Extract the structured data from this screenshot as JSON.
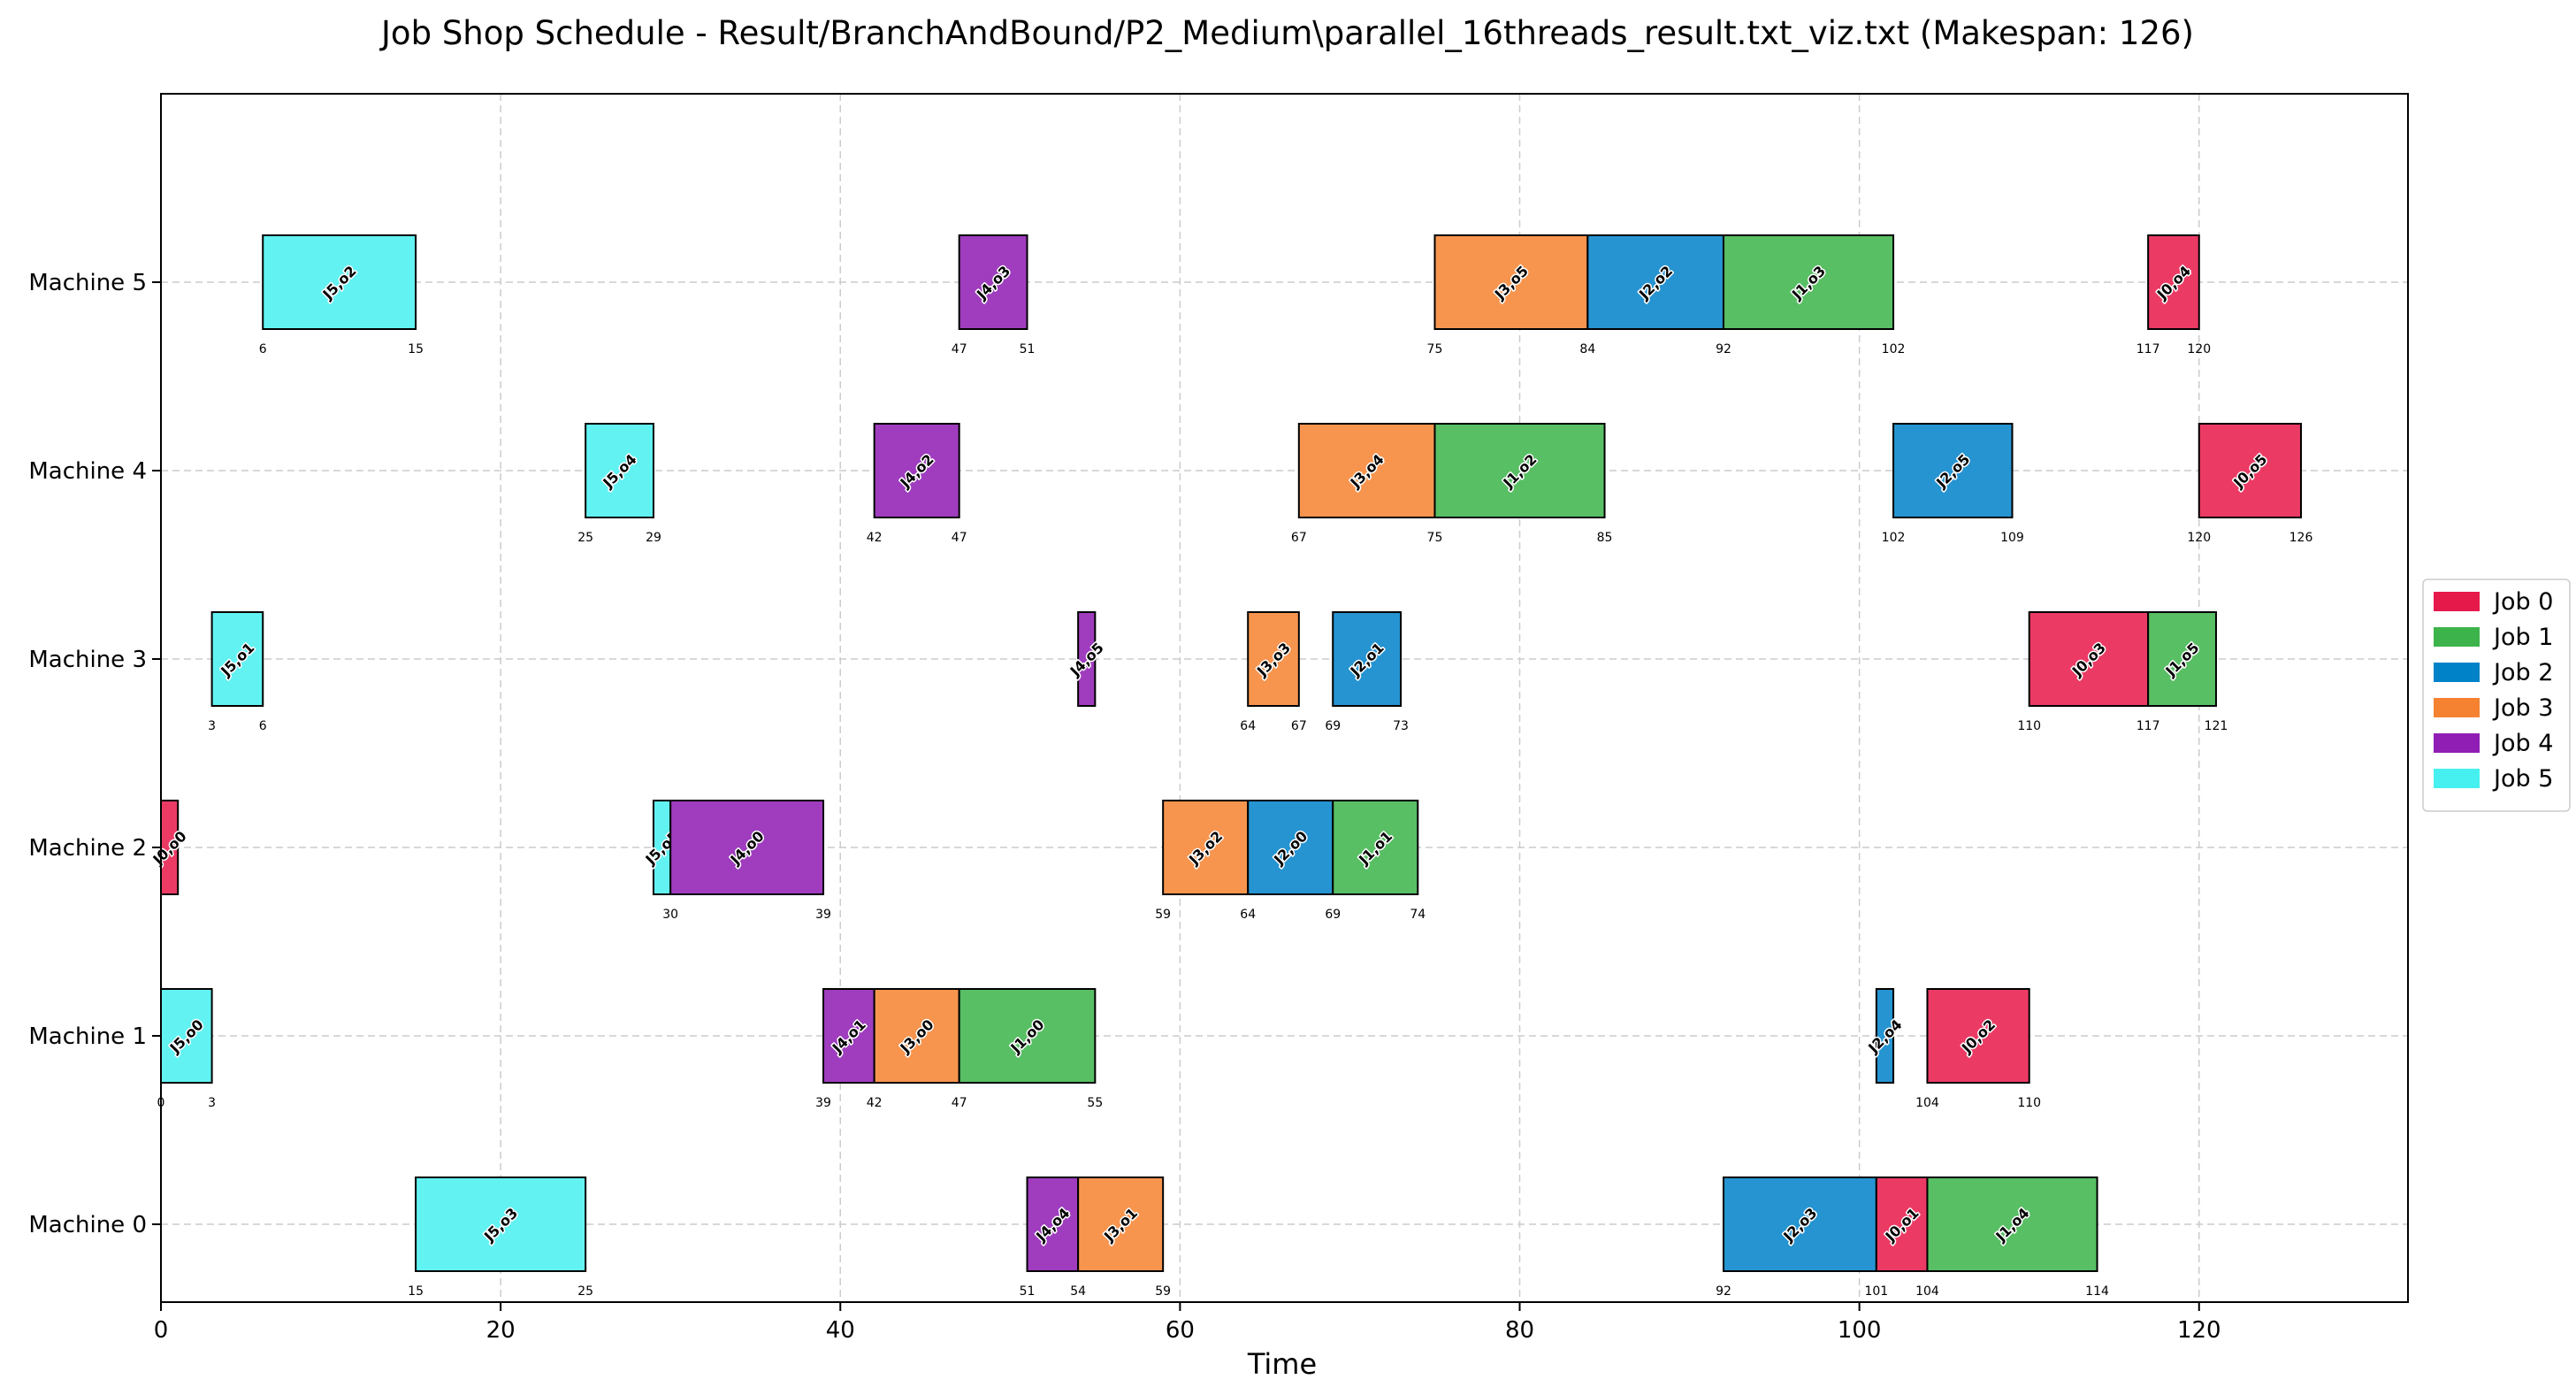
{
  "chart_data": {
    "type": "gantt",
    "title": "Job Shop Schedule - Result/BranchAndBound/P2_Medium\\parallel_16threads_result.txt_viz.txt (Makespan: 126)",
    "xlabel": "Time",
    "ylabel": "",
    "xlim": [
      0,
      132.3
    ],
    "xticks": [
      0,
      20,
      40,
      60,
      80,
      100,
      120
    ],
    "machines": [
      "Machine 0",
      "Machine 1",
      "Machine 2",
      "Machine 3",
      "Machine 4",
      "Machine 5"
    ],
    "grid": true,
    "legend_position": "right",
    "jobs": [
      {
        "name": "Job 0",
        "color": "#e6194b",
        "fill": "#eb3b65"
      },
      {
        "name": "Job 1",
        "color": "#3cb44b",
        "fill": "#58bf64"
      },
      {
        "name": "Job 2",
        "color": "#0082c8",
        "fill": "#2694d1"
      },
      {
        "name": "Job 3",
        "color": "#f58231",
        "fill": "#f7954f"
      },
      {
        "name": "Job 4",
        "color": "#911eb4",
        "fill": "#9f3dbe"
      },
      {
        "name": "Job 5",
        "color": "#46f0f0",
        "fill": "#63f2f2"
      }
    ],
    "operations": [
      {
        "machine": 0,
        "job": 5,
        "label": "J5,o3",
        "start": 15,
        "end": 25
      },
      {
        "machine": 0,
        "job": 4,
        "label": "J4,o4",
        "start": 51,
        "end": 54
      },
      {
        "machine": 0,
        "job": 3,
        "label": "J3,o1",
        "start": 54,
        "end": 59
      },
      {
        "machine": 0,
        "job": 2,
        "label": "J2,o3",
        "start": 92,
        "end": 101
      },
      {
        "machine": 0,
        "job": 0,
        "label": "J0,o1",
        "start": 101,
        "end": 104
      },
      {
        "machine": 0,
        "job": 1,
        "label": "J1,o4",
        "start": 104,
        "end": 114
      },
      {
        "machine": 1,
        "job": 5,
        "label": "J5,o0",
        "start": 0,
        "end": 3
      },
      {
        "machine": 1,
        "job": 4,
        "label": "J4,o1",
        "start": 39,
        "end": 42
      },
      {
        "machine": 1,
        "job": 3,
        "label": "J3,o0",
        "start": 42,
        "end": 47
      },
      {
        "machine": 1,
        "job": 1,
        "label": "J1,o0",
        "start": 47,
        "end": 55
      },
      {
        "machine": 1,
        "job": 2,
        "label": "J2,o4",
        "start": 101,
        "end": 102
      },
      {
        "machine": 1,
        "job": 0,
        "label": "J0,o2",
        "start": 104,
        "end": 110
      },
      {
        "machine": 2,
        "job": 0,
        "label": "J0,o0",
        "start": 0,
        "end": 1
      },
      {
        "machine": 2,
        "job": 5,
        "label": "J5,o5",
        "start": 29,
        "end": 30
      },
      {
        "machine": 2,
        "job": 4,
        "label": "J4,o0",
        "start": 30,
        "end": 39
      },
      {
        "machine": 2,
        "job": 3,
        "label": "J3,o2",
        "start": 59,
        "end": 64
      },
      {
        "machine": 2,
        "job": 2,
        "label": "J2,o0",
        "start": 64,
        "end": 69
      },
      {
        "machine": 2,
        "job": 1,
        "label": "J1,o1",
        "start": 69,
        "end": 74
      },
      {
        "machine": 3,
        "job": 5,
        "label": "J5,o1",
        "start": 3,
        "end": 6
      },
      {
        "machine": 3,
        "job": 4,
        "label": "J4,o5",
        "start": 54,
        "end": 55
      },
      {
        "machine": 3,
        "job": 3,
        "label": "J3,o3",
        "start": 64,
        "end": 67
      },
      {
        "machine": 3,
        "job": 2,
        "label": "J2,o1",
        "start": 69,
        "end": 73
      },
      {
        "machine": 3,
        "job": 0,
        "label": "J0,o3",
        "start": 110,
        "end": 117
      },
      {
        "machine": 3,
        "job": 1,
        "label": "J1,o5",
        "start": 117,
        "end": 121
      },
      {
        "machine": 4,
        "job": 5,
        "label": "J5,o4",
        "start": 25,
        "end": 29
      },
      {
        "machine": 4,
        "job": 4,
        "label": "J4,o2",
        "start": 42,
        "end": 47
      },
      {
        "machine": 4,
        "job": 3,
        "label": "J3,o4",
        "start": 67,
        "end": 75
      },
      {
        "machine": 4,
        "job": 1,
        "label": "J1,o2",
        "start": 75,
        "end": 85
      },
      {
        "machine": 4,
        "job": 2,
        "label": "J2,o5",
        "start": 102,
        "end": 109
      },
      {
        "machine": 4,
        "job": 0,
        "label": "J0,o5",
        "start": 120,
        "end": 126
      },
      {
        "machine": 5,
        "job": 5,
        "label": "J5,o2",
        "start": 6,
        "end": 15
      },
      {
        "machine": 5,
        "job": 4,
        "label": "J4,o3",
        "start": 47,
        "end": 51
      },
      {
        "machine": 5,
        "job": 3,
        "label": "J3,o5",
        "start": 75,
        "end": 84
      },
      {
        "machine": 5,
        "job": 2,
        "label": "J2,o2",
        "start": 84,
        "end": 92
      },
      {
        "machine": 5,
        "job": 1,
        "label": "J1,o3",
        "start": 92,
        "end": 102
      },
      {
        "machine": 5,
        "job": 0,
        "label": "J0,o4",
        "start": 117,
        "end": 120
      }
    ],
    "time_labels": [
      {
        "machine": 0,
        "values": [
          15,
          25,
          51,
          54,
          59,
          92,
          101,
          104,
          114
        ]
      },
      {
        "machine": 1,
        "values": [
          0,
          3,
          39,
          42,
          47,
          55,
          104,
          110
        ]
      },
      {
        "machine": 2,
        "values": [
          30,
          39,
          59,
          64,
          69,
          74
        ]
      },
      {
        "machine": 3,
        "values": [
          3,
          6,
          64,
          67,
          69,
          73,
          110,
          117,
          121
        ]
      },
      {
        "machine": 4,
        "values": [
          25,
          29,
          42,
          47,
          67,
          75,
          85,
          102,
          109,
          120,
          126
        ]
      },
      {
        "machine": 5,
        "values": [
          6,
          15,
          47,
          51,
          75,
          84,
          92,
          102,
          117,
          120
        ]
      }
    ]
  }
}
